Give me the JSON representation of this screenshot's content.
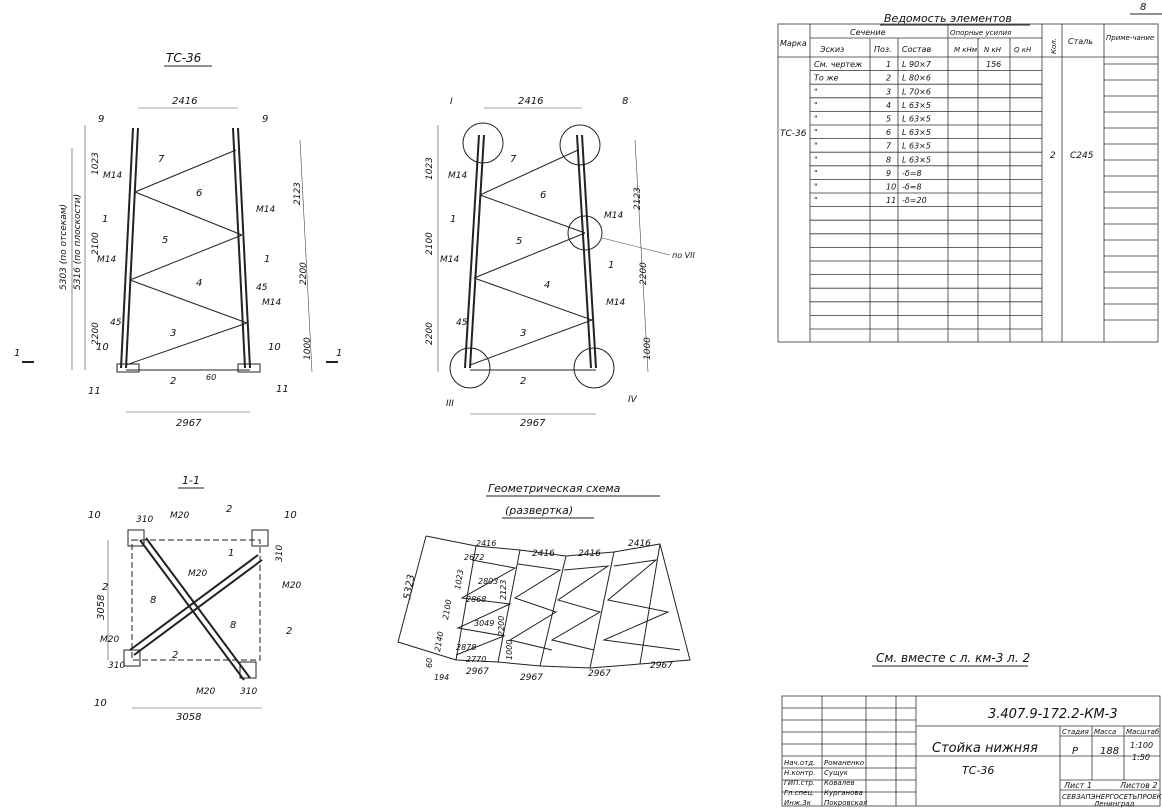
{
  "sheet_no": "8",
  "views": {
    "tc_title": "ТС-36",
    "section_title": "1-1",
    "geo_title": "Геометрическая схема",
    "geo_sub": "(развертка)",
    "see_note": "См. вместе с л. км-3 л. 2",
    "cut_mark": "1",
    "node_labels": [
      "I",
      "II",
      "III",
      "IV",
      "VII"
    ],
    "node_ref": "по VII"
  },
  "dims": {
    "top_width": "2416",
    "bottom_width": "2967",
    "left_total_a": "5303 (по отсекам)",
    "left_total_b": "5316 (по плоскости)",
    "left_upper": "1023",
    "left_mid": "2100",
    "left_low": "2200",
    "right_upper": "2123",
    "right_mid": "2200",
    "right_low": "1000",
    "angle": "45",
    "angle2": "60",
    "bolt": "М14",
    "sec_width": "3058",
    "sec_height": "3058",
    "sec_off": "310",
    "sec_bolt": "М20",
    "geo": {
      "left_height": "5323",
      "a": "1023",
      "b": "2100",
      "c": "2140",
      "d": "2672",
      "e": "2803",
      "f": "2868",
      "g": "3049",
      "h": "2878",
      "i": "2770",
      "j": "2200",
      "k": "2123",
      "l": "1000",
      "m": "194",
      "n": "60",
      "top": "2416",
      "bottom": "2967"
    }
  },
  "table": {
    "title": "Ведомость элементов",
    "headers": {
      "marka": "Марка",
      "sechenie": "Сечение",
      "eskiz": "Эскиз",
      "poz": "Поз.",
      "sostav": "Состав",
      "usiliya": "Опорные усилия",
      "m": "М кНм",
      "n": "N кН",
      "q": "Q кН",
      "kol": "Кол.",
      "stal": "Сталь",
      "prim": "Приме-чание"
    },
    "marka": "ТС-36",
    "kol": "2",
    "stal": "С245",
    "rows": [
      {
        "eskiz": "См. чертеж",
        "poz": "1",
        "sostav": "L 90×7",
        "n": "156"
      },
      {
        "eskiz": "То же",
        "poz": "2",
        "sostav": "L 80×6",
        "n": ""
      },
      {
        "eskiz": "\"",
        "poz": "3",
        "sostav": "L 70×6",
        "n": ""
      },
      {
        "eskiz": "\"",
        "poz": "4",
        "sostav": "L 63×5",
        "n": ""
      },
      {
        "eskiz": "\"",
        "poz": "5",
        "sostav": "L 63×5",
        "n": ""
      },
      {
        "eskiz": "\"",
        "poz": "6",
        "sostav": "L 63×5",
        "n": ""
      },
      {
        "eskiz": "\"",
        "poz": "7",
        "sostav": "L 63×5",
        "n": ""
      },
      {
        "eskiz": "\"",
        "poz": "8",
        "sostav": "L 63×5",
        "n": ""
      },
      {
        "eskiz": "\"",
        "poz": "9",
        "sostav": "-δ=8",
        "n": ""
      },
      {
        "eskiz": "\"",
        "poz": "10",
        "sostav": "-δ=8",
        "n": ""
      },
      {
        "eskiz": "\"",
        "poz": "11",
        "sostav": "-δ=20",
        "n": ""
      }
    ]
  },
  "stamp": {
    "code": "3.407.9-172.2-КМ-3",
    "title": "Стойка нижняя",
    "subtitle": "ТС-36",
    "stadia_h": "Стадия",
    "massa_h": "Масса",
    "masht_h": "Масштаб",
    "stadia": "Р",
    "massa": "188",
    "masht1": "1:100",
    "masht2": "1:50",
    "list": "Лист 1",
    "listov": "Листов 2",
    "org": "СЕВЗАПЭНЕРГОСЕТЬПРОЕКТ",
    "city": "Ленинград",
    "people": [
      {
        "role": "Нач.отд.",
        "name": "Романенко"
      },
      {
        "role": "Н.контр.",
        "name": "Сущук"
      },
      {
        "role": "ГИП.стр.",
        "name": "Ковалев"
      },
      {
        "role": "Гл.спец.",
        "name": "Курганова"
      },
      {
        "role": "Инж.3к",
        "name": "Покровская"
      }
    ]
  }
}
